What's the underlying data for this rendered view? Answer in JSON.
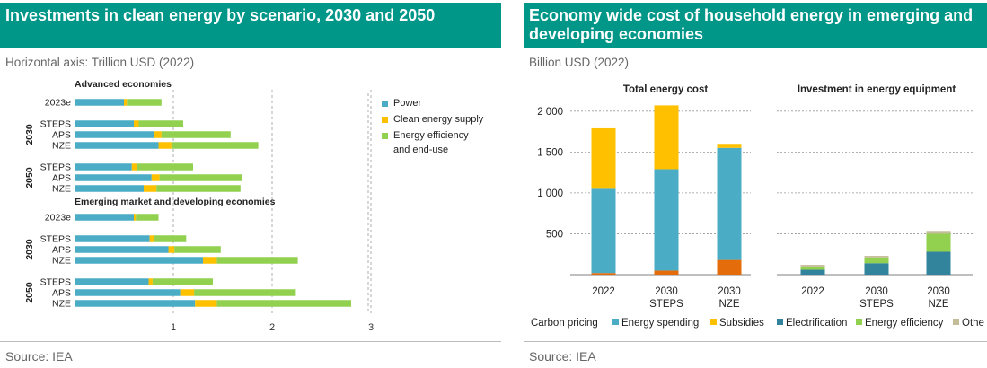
{
  "colors": {
    "teal_header": "#009688",
    "power": "#4bacc6",
    "clean_supply": "#ffc000",
    "efficiency": "#92d050",
    "carbon_pricing": "#e46c0a",
    "energy_spending": "#4bacc6",
    "subsidies": "#ffc000",
    "electrification": "#31849b",
    "energy_efficiency": "#92d050",
    "other": "#c4bd97"
  },
  "chart_data": [
    {
      "type": "bar",
      "orientation": "horizontal",
      "stacked": true,
      "title": "Investments in clean energy by scenario, 2030 and 2050",
      "subtitle": "Horizontal axis: Trillion USD (2022)",
      "source": "Source: IEA",
      "xlim": [
        0,
        3
      ],
      "xticks": [
        "1",
        "2",
        "3"
      ],
      "series_names": [
        "Power",
        "Clean energy supply",
        "Energy efficiency and end-use"
      ],
      "legend": {
        "position": "right",
        "entries": [
          "Power",
          "Clean energy supply",
          "Energy efficiency",
          "and end-use"
        ]
      },
      "groups": [
        {
          "name": "Advanced economies",
          "rows": [
            {
              "label": "2023e",
              "period": "",
              "values": [
                0.5,
                0.03,
                0.35
              ]
            },
            {
              "label": "STEPS",
              "period": "2030",
              "values": [
                0.6,
                0.05,
                0.45
              ]
            },
            {
              "label": "APS",
              "period": "2030",
              "values": [
                0.8,
                0.08,
                0.7
              ]
            },
            {
              "label": "NZE",
              "period": "2030",
              "values": [
                0.85,
                0.13,
                0.88
              ]
            },
            {
              "label": "STEPS",
              "period": "2050",
              "values": [
                0.58,
                0.05,
                0.57
              ]
            },
            {
              "label": "APS",
              "period": "2050",
              "values": [
                0.78,
                0.08,
                0.84
              ]
            },
            {
              "label": "NZE",
              "period": "2050",
              "values": [
                0.7,
                0.13,
                0.85
              ]
            }
          ]
        },
        {
          "name": "Emerging market and developing economies",
          "rows": [
            {
              "label": "2023e",
              "period": "",
              "values": [
                0.6,
                0.02,
                0.23
              ]
            },
            {
              "label": "STEPS",
              "period": "2030",
              "values": [
                0.76,
                0.04,
                0.33
              ]
            },
            {
              "label": "APS",
              "period": "2030",
              "values": [
                0.95,
                0.06,
                0.47
              ]
            },
            {
              "label": "NZE",
              "period": "2030",
              "values": [
                1.3,
                0.14,
                0.82
              ]
            },
            {
              "label": "STEPS",
              "period": "2050",
              "values": [
                0.75,
                0.04,
                0.61
              ]
            },
            {
              "label": "APS",
              "period": "2050",
              "values": [
                1.07,
                0.14,
                1.03
              ]
            },
            {
              "label": "NZE",
              "period": "2050",
              "values": [
                1.22,
                0.22,
                1.36
              ]
            }
          ]
        }
      ]
    },
    {
      "type": "bar",
      "stacked": true,
      "title": "Economy wide cost of household energy in emerging and developing economies",
      "subtitle": "Billion USD (2022)",
      "source": "Source: IEA",
      "ylim": [
        0,
        2200
      ],
      "yticks": [
        "2 000",
        "1 500",
        "1 000",
        "500"
      ],
      "yticks_values": [
        2000,
        1500,
        1000,
        500
      ],
      "panels": [
        {
          "title": "Total energy cost",
          "categories": [
            [
              "2022"
            ],
            [
              "2030",
              "STEPS"
            ],
            [
              "2030",
              "NZE"
            ]
          ],
          "series": [
            {
              "name": "Carbon pricing",
              "values": [
                20,
                50,
                180
              ]
            },
            {
              "name": "Energy spending",
              "values": [
                1030,
                1240,
                1370
              ]
            },
            {
              "name": "Subsidies",
              "values": [
                740,
                780,
                50
              ]
            }
          ]
        },
        {
          "title": "Investment in energy equipment",
          "categories": [
            [
              "2022"
            ],
            [
              "2030",
              "STEPS"
            ],
            [
              "2030",
              "NZE"
            ]
          ],
          "series": [
            {
              "name": "Electrification",
              "values": [
                60,
                140,
                280
              ]
            },
            {
              "name": "Energy efficiency",
              "values": [
                40,
                70,
                220
              ]
            },
            {
              "name": "Other",
              "values": [
                20,
                20,
                35
              ]
            }
          ]
        }
      ],
      "legend": {
        "position": "bottom",
        "entries": [
          "Carbon pricing",
          "Energy spending",
          "Subsidies",
          "Electrification",
          "Energy efficiency",
          "Othe"
        ]
      }
    }
  ]
}
